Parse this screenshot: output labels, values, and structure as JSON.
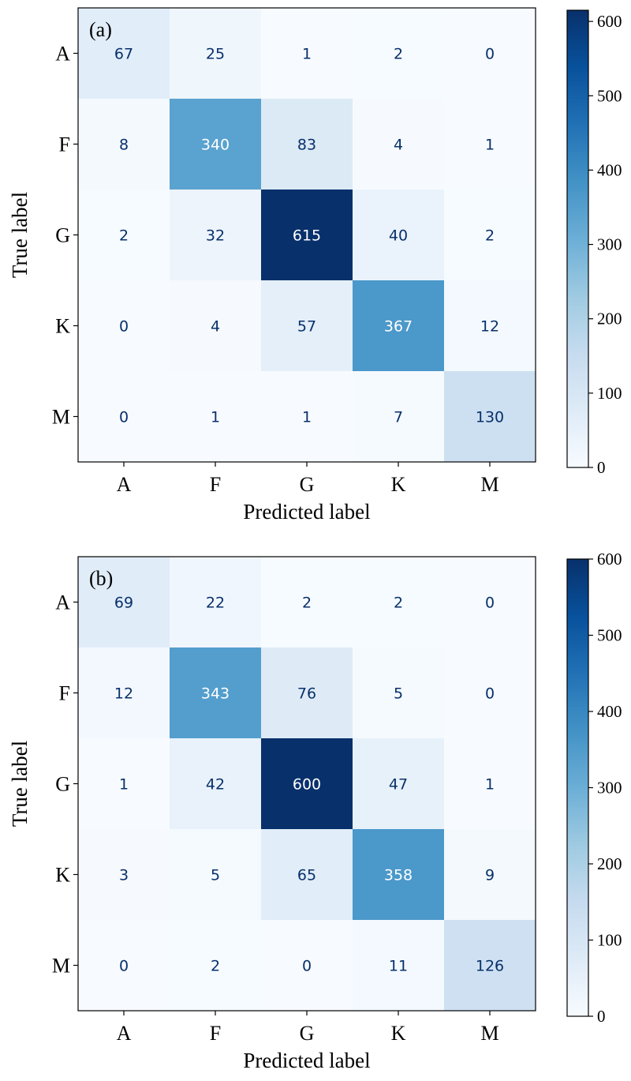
{
  "chart_data": [
    {
      "type": "heatmap",
      "panel_label": "(a)",
      "xlabel": "Predicted label",
      "ylabel": "True label",
      "x_categories": [
        "A",
        "F",
        "G",
        "K",
        "M"
      ],
      "y_categories": [
        "A",
        "F",
        "G",
        "K",
        "M"
      ],
      "values": [
        [
          67,
          25,
          1,
          2,
          0
        ],
        [
          8,
          340,
          83,
          4,
          1
        ],
        [
          2,
          32,
          615,
          40,
          2
        ],
        [
          0,
          4,
          57,
          367,
          12
        ],
        [
          0,
          1,
          1,
          7,
          130
        ]
      ],
      "colorbar": {
        "colormap": "Blues",
        "vmin": 0,
        "vmax": 615,
        "ticks": [
          "0",
          "100",
          "200",
          "300",
          "400",
          "500",
          "600"
        ]
      }
    },
    {
      "type": "heatmap",
      "panel_label": "(b)",
      "xlabel": "Predicted label",
      "ylabel": "True label",
      "x_categories": [
        "A",
        "F",
        "G",
        "K",
        "M"
      ],
      "y_categories": [
        "A",
        "F",
        "G",
        "K",
        "M"
      ],
      "values": [
        [
          69,
          22,
          2,
          2,
          0
        ],
        [
          12,
          343,
          76,
          5,
          0
        ],
        [
          1,
          42,
          600,
          47,
          1
        ],
        [
          3,
          5,
          65,
          358,
          9
        ],
        [
          0,
          2,
          0,
          11,
          126
        ]
      ],
      "colorbar": {
        "colormap": "Blues",
        "vmin": 0,
        "vmax": 600,
        "ticks": [
          "0",
          "100",
          "200",
          "300",
          "400",
          "500",
          "600"
        ]
      }
    }
  ]
}
